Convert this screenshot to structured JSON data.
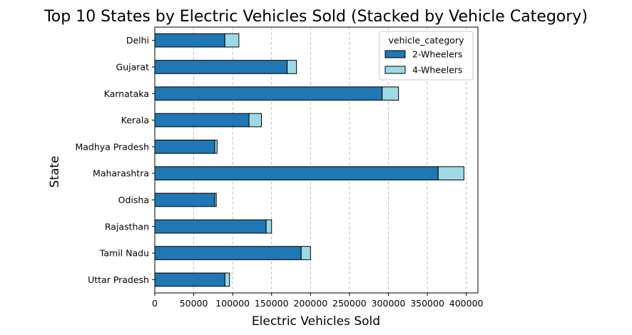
{
  "chart_data": {
    "type": "bar",
    "orientation": "horizontal",
    "stacked": true,
    "title": "Top 10 States by Electric Vehicles Sold (Stacked by Vehicle Category)",
    "xlabel": "Electric Vehicles Sold",
    "ylabel": "State",
    "xlim": [
      0,
      415000
    ],
    "xticks": [
      0,
      50000,
      100000,
      150000,
      200000,
      250000,
      300000,
      350000,
      400000
    ],
    "xtick_labels": [
      "0",
      "50000",
      "100000",
      "150000",
      "200000",
      "250000",
      "300000",
      "350000",
      "400000"
    ],
    "grid": "x-dashed",
    "legend_placement": "top-right",
    "legend_title": "vehicle_category",
    "categories": [
      "Delhi",
      "Gujarat",
      "Karnataka",
      "Kerala",
      "Madhya Pradesh",
      "Maharashtra",
      "Odisha",
      "Rajasthan",
      "Tamil Nadu",
      "Uttar Pradesh"
    ],
    "series": [
      {
        "name": "2-Wheelers",
        "color": "#1f77b4",
        "values": [
          90000,
          170000,
          292000,
          121000,
          77000,
          364000,
          77000,
          143000,
          188000,
          90000
        ]
      },
      {
        "name": "4-Wheelers",
        "color": "#9edae5",
        "values": [
          18000,
          12000,
          21000,
          16000,
          3000,
          33000,
          2000,
          7000,
          12000,
          6000
        ]
      }
    ]
  }
}
